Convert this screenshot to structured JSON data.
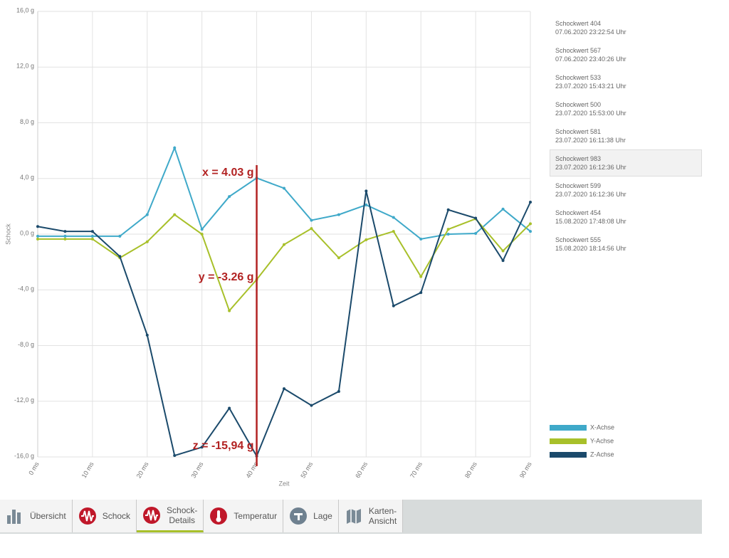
{
  "chart_data": {
    "type": "line",
    "x_label": "Zeit",
    "y_label": "Schock",
    "x": [
      0,
      5,
      10,
      15,
      20,
      25,
      30,
      35,
      40,
      45,
      50,
      55,
      60,
      65,
      70,
      75,
      80,
      85,
      90
    ],
    "series": [
      {
        "name": "X-Achse",
        "color": "#3fa9c9",
        "values": [
          -0.15,
          -0.15,
          -0.15,
          -0.15,
          1.4,
          6.2,
          0.35,
          2.7,
          4.03,
          3.3,
          1.0,
          1.4,
          2.1,
          1.2,
          -0.35,
          0.0,
          0.05,
          1.8,
          0.2
        ]
      },
      {
        "name": "Y-Achse",
        "color": "#a8c02a",
        "values": [
          -0.35,
          -0.35,
          -0.35,
          -1.7,
          -0.55,
          1.4,
          0.0,
          -5.5,
          -3.26,
          -0.75,
          0.4,
          -1.7,
          -0.4,
          0.2,
          -3.05,
          0.35,
          1.1,
          -1.2,
          0.75
        ]
      },
      {
        "name": "Z-Achse",
        "color": "#1b4a6b",
        "values": [
          0.55,
          0.2,
          0.2,
          -1.6,
          -7.25,
          -15.9,
          -15.3,
          -12.5,
          -15.94,
          -11.1,
          -12.3,
          -11.3,
          3.1,
          -5.15,
          -4.2,
          1.75,
          1.15,
          -1.9,
          2.3
        ]
      }
    ],
    "xlim": [
      0,
      90
    ],
    "xticks": [
      {
        "value": 0,
        "label": "0 ms"
      },
      {
        "value": 10,
        "label": "10 ms"
      },
      {
        "value": 20,
        "label": "20 ms"
      },
      {
        "value": 30,
        "label": "30 ms"
      },
      {
        "value": 40,
        "label": "40 ms"
      },
      {
        "value": 50,
        "label": "50 ms"
      },
      {
        "value": 60,
        "label": "60 ms"
      },
      {
        "value": 70,
        "label": "70 ms"
      },
      {
        "value": 80,
        "label": "80 ms"
      },
      {
        "value": 90,
        "label": "90 ms"
      }
    ],
    "ylim": [
      -16,
      16
    ],
    "yticks": [
      {
        "value": -16,
        "label": "-16,0 g"
      },
      {
        "value": -12,
        "label": "-12,0 g"
      },
      {
        "value": -8,
        "label": "-8,0 g"
      },
      {
        "value": -4,
        "label": "-4,0 g"
      },
      {
        "value": 0,
        "label": "0,0 g"
      },
      {
        "value": 4,
        "label": "4,0 g"
      },
      {
        "value": 8,
        "label": "8,0 g"
      },
      {
        "value": 12,
        "label": "12,0 g"
      },
      {
        "value": 16,
        "label": "16,0 g"
      }
    ],
    "grid": true,
    "cursor": 40,
    "cursor_color": "#b22222",
    "annotations": [
      "x = 4.03 g",
      "y = -3.26 g",
      "z = -15,94 g"
    ]
  },
  "shock_list": {
    "selected": 5,
    "items": [
      {
        "title": "Schockwert 404",
        "time": "07.06.2020 23:22:54 Uhr"
      },
      {
        "title": "Schockwert 567",
        "time": "07.06.2020 23:40:26 Uhr"
      },
      {
        "title": "Schockwert 533",
        "time": "23.07.2020 15:43:21 Uhr"
      },
      {
        "title": "Schockwert 500",
        "time": "23.07.2020 15:53:00 Uhr"
      },
      {
        "title": "Schockwert 581",
        "time": "23.07.2020 16:11:38 Uhr"
      },
      {
        "title": "Schockwert 983",
        "time": "23.07.2020 16:12:36 Uhr"
      },
      {
        "title": "Schockwert 599",
        "time": "23.07.2020 16:12:36 Uhr"
      },
      {
        "title": "Schockwert 454",
        "time": "15.08.2020 17:48:08 Uhr"
      },
      {
        "title": "Schockwert 555",
        "time": "15.08.2020 18:14:56 Uhr"
      }
    ]
  },
  "tabs": {
    "active": 2,
    "items": [
      {
        "lines": [
          "Übersicht"
        ]
      },
      {
        "lines": [
          "Schock"
        ]
      },
      {
        "lines": [
          "Schock-",
          "Details"
        ]
      },
      {
        "lines": [
          "Temperatur"
        ]
      },
      {
        "lines": [
          "Lage"
        ]
      },
      {
        "lines": [
          "Karten-",
          "Ansicht"
        ]
      }
    ]
  }
}
